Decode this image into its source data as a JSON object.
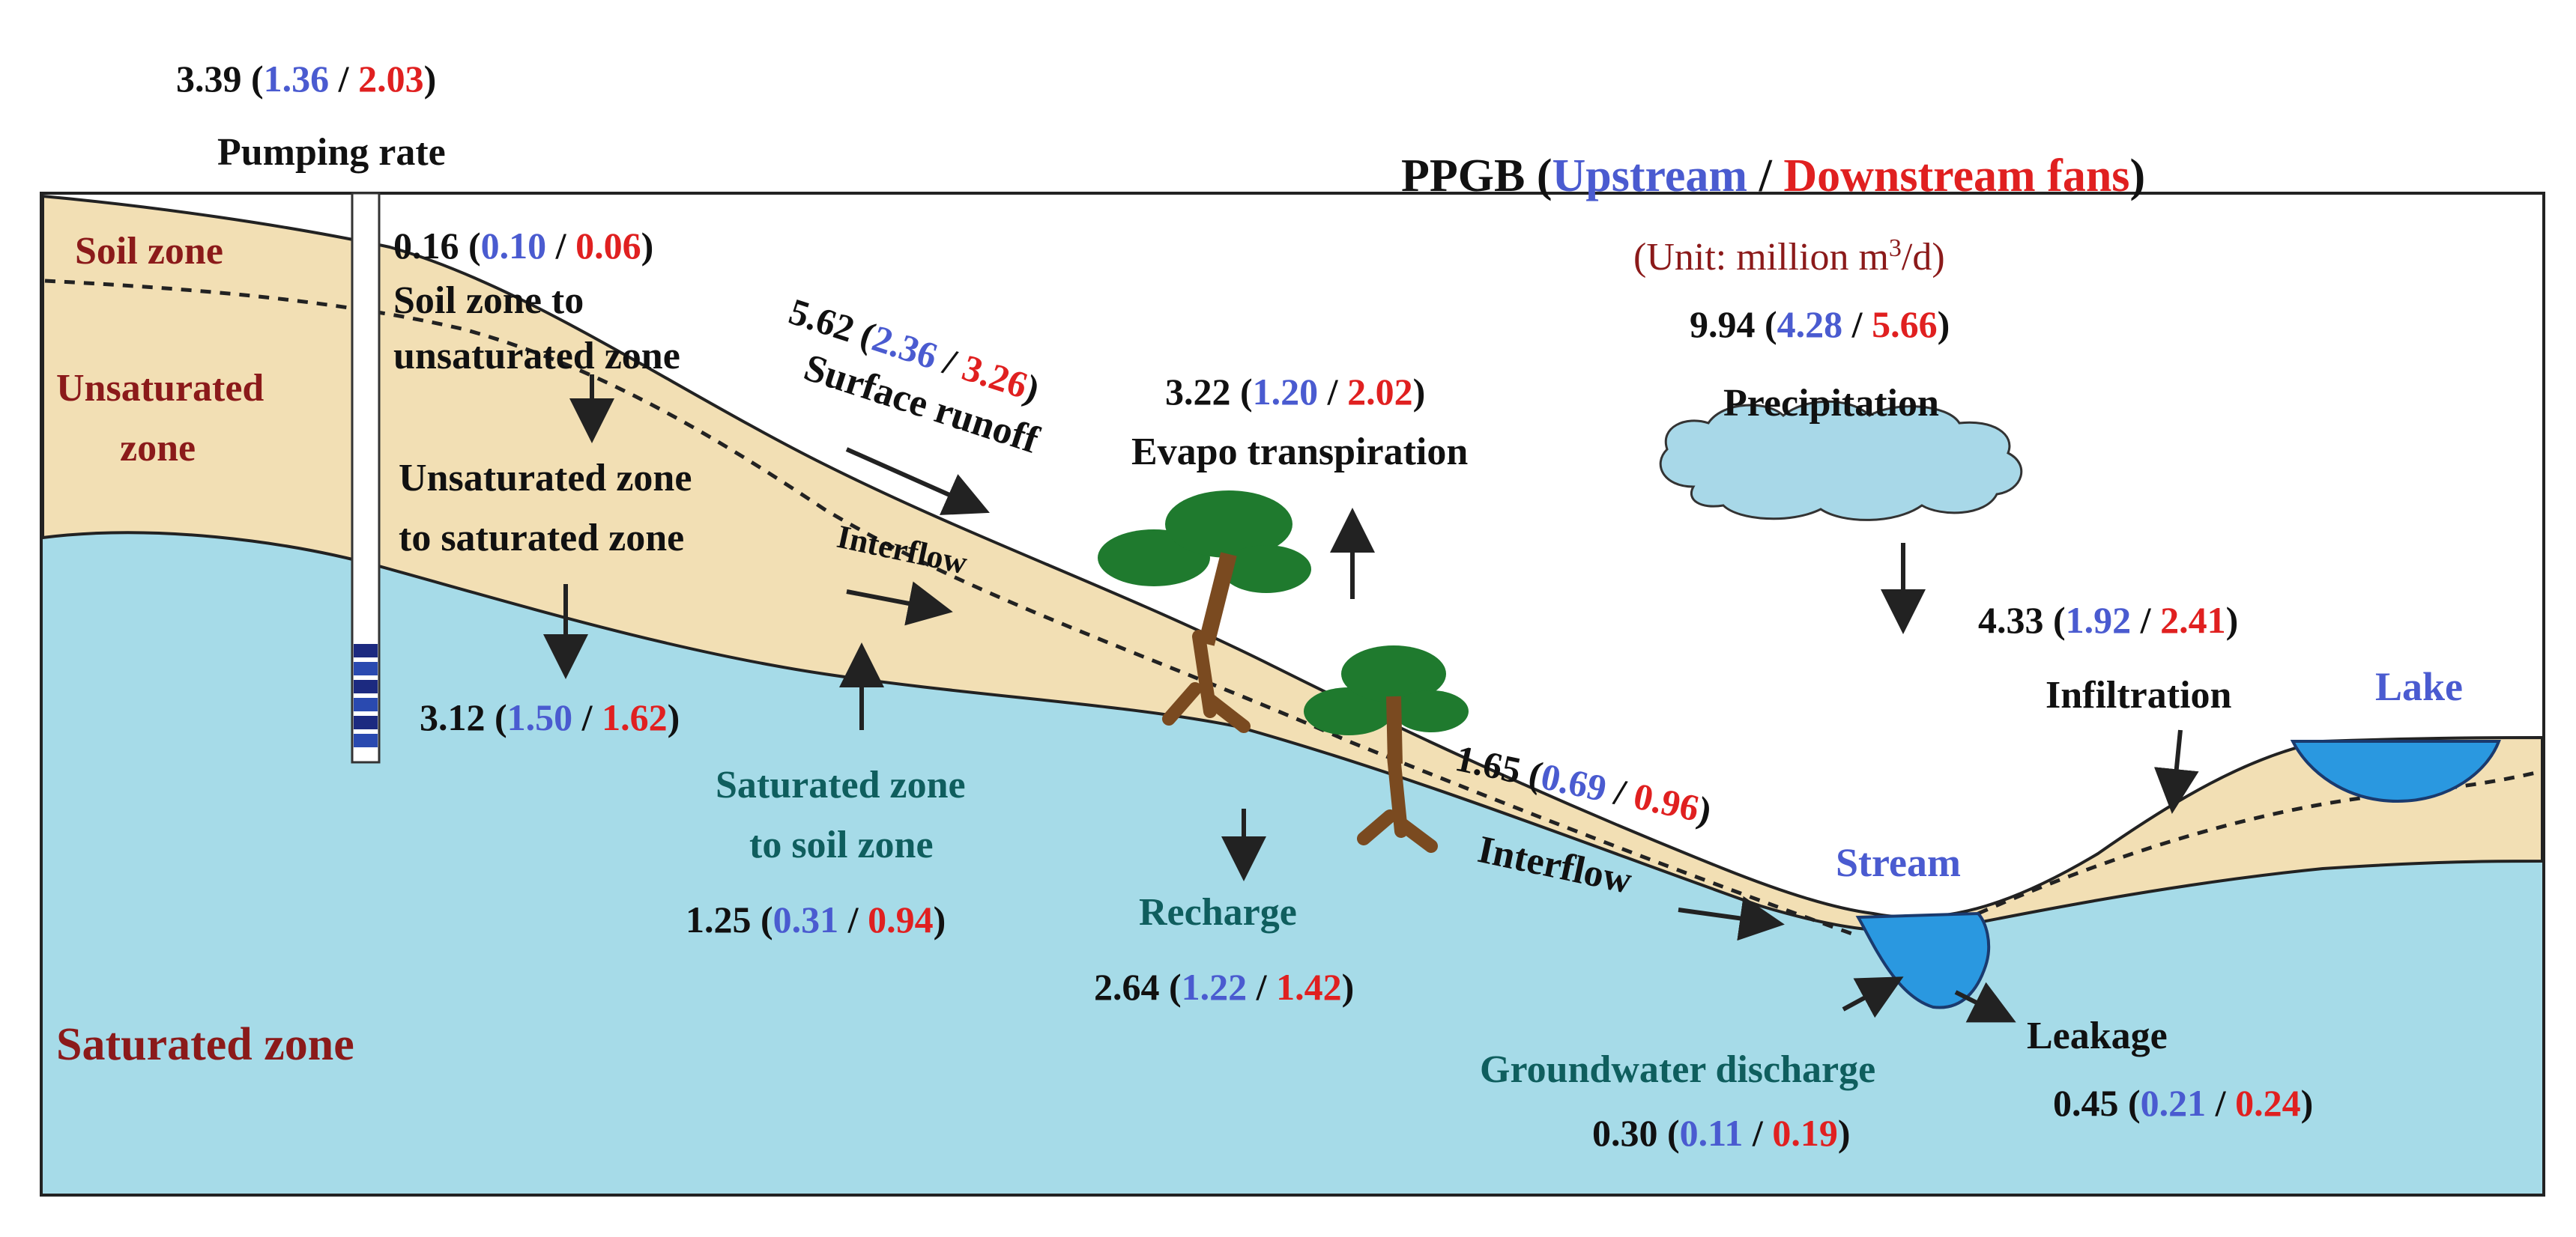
{
  "colors": {
    "sky": "#ffffff",
    "saturated": "#a6dbe8",
    "unsaturated": "#f2dfb4",
    "water": "#2a98e0",
    "cloud": "#a8d8e8",
    "tree_canopy": "#1f7a2e",
    "trunk": "#7a4a20",
    "upstream": "#4a5bd0",
    "downstream": "#e02020",
    "zone_label": "#8b1a1a"
  },
  "legend": {
    "prefix": "PPGB (",
    "upstream": "Upstream",
    "sep": " / ",
    "downstream": "Downstream fans",
    "suffix": ")",
    "unit_prefix": "(Unit: million  m",
    "unit_sup": "3",
    "unit_suffix": "/d)"
  },
  "zones": {
    "soil": "Soil zone",
    "unsat_line1": "Unsaturated",
    "unsat_line2": "zone",
    "saturated": "Saturated zone"
  },
  "places": {
    "lake": "Lake",
    "stream": "Stream"
  },
  "flows": {
    "pumping": {
      "label": "Pumping rate",
      "total": "3.39",
      "up": "1.36",
      "down": "2.03"
    },
    "soil_to_unsat": {
      "label1": "Soil zone to",
      "label2": "unsaturated zone",
      "total": "0.16",
      "up": "0.10",
      "down": "0.06"
    },
    "unsat_to_sat": {
      "label1": "Unsaturated zone",
      "label2": "to saturated zone",
      "total": "3.12",
      "up": "1.50",
      "down": "1.62"
    },
    "surface_runoff": {
      "label": "Surface runoff",
      "total": "5.62",
      "up": "2.36",
      "down": "3.26"
    },
    "interflow_upper": {
      "label": "Interflow"
    },
    "sat_to_soil": {
      "label1": "Saturated zone",
      "label2": "to soil zone",
      "total": "1.25",
      "up": "0.31",
      "down": "0.94"
    },
    "evapotranspiration": {
      "label": "Evapo transpiration",
      "total": "3.22",
      "up": "1.20",
      "down": "2.02"
    },
    "recharge": {
      "label": "Recharge",
      "total": "2.64",
      "up": "1.22",
      "down": "1.42"
    },
    "interflow_lower": {
      "label": "Interflow",
      "total": "1.65",
      "up": "0.69",
      "down": "0.96"
    },
    "precipitation": {
      "label": "Precipitation",
      "total": "9.94",
      "up": "4.28",
      "down": "5.66"
    },
    "infiltration": {
      "label": "Infiltration",
      "total": "4.33",
      "up": "1.92",
      "down": "2.41"
    },
    "gw_discharge": {
      "label": "Groundwater discharge",
      "total": "0.30",
      "up": "0.11",
      "down": "0.19"
    },
    "leakage": {
      "label": "Leakage",
      "total": "0.45",
      "up": "0.21",
      "down": "0.24"
    }
  }
}
